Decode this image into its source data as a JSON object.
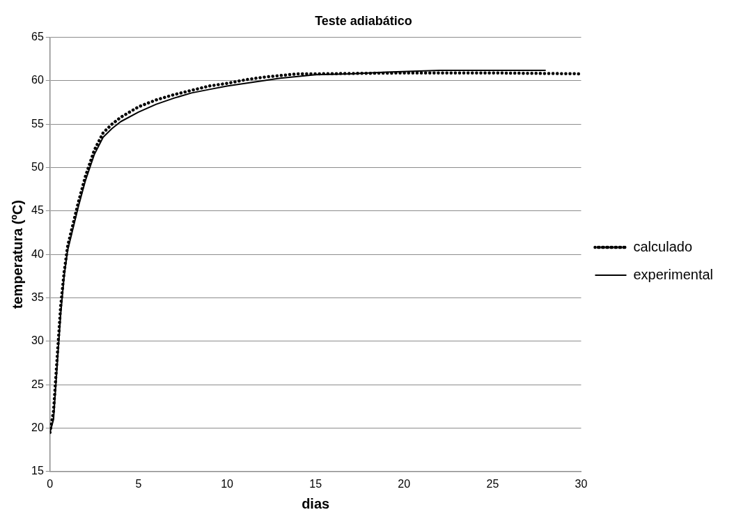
{
  "chart_data": {
    "type": "line",
    "title": "Teste adiabático",
    "xlabel": "dias",
    "ylabel": "temperatura (ºC)",
    "xlim": [
      0,
      30
    ],
    "xticks": [
      0,
      5,
      10,
      15,
      20,
      25,
      30
    ],
    "ylim": [
      15,
      65
    ],
    "yticks": [
      15,
      20,
      25,
      30,
      35,
      40,
      45,
      50,
      55,
      60,
      65
    ],
    "grid": "y",
    "legend": "right",
    "marker": "none",
    "series": [
      {
        "name": "calculado",
        "color": "#000000",
        "line_style": "dotted",
        "x": [
          0,
          0.2,
          0.4,
          0.6,
          0.8,
          1,
          1.3,
          1.6,
          2,
          2.5,
          3,
          3.5,
          4,
          5,
          6,
          7,
          8,
          9,
          10,
          11,
          12,
          13,
          14,
          15,
          20,
          25,
          30
        ],
        "values": [
          19.5,
          22,
          28,
          34,
          38,
          41,
          43.5,
          46,
          49,
          52,
          54,
          55,
          55.8,
          57,
          57.8,
          58.4,
          58.9,
          59.4,
          59.7,
          60.1,
          60.4,
          60.6,
          60.8,
          60.8,
          60.9,
          60.9,
          60.8
        ]
      },
      {
        "name": "experimental",
        "color": "#000000",
        "line_style": "solid",
        "x": [
          0,
          0.2,
          0.4,
          0.6,
          0.8,
          1,
          1.3,
          1.6,
          2,
          2.5,
          3,
          3.5,
          4,
          5,
          6,
          7,
          8,
          9,
          10,
          11,
          12,
          13,
          14,
          15,
          17,
          19,
          22,
          28
        ],
        "values": [
          19.5,
          21,
          27,
          33,
          37.5,
          40.5,
          43,
          45.5,
          48.5,
          51.5,
          53.5,
          54.5,
          55.3,
          56.4,
          57.3,
          58,
          58.6,
          59,
          59.4,
          59.7,
          60,
          60.3,
          60.5,
          60.7,
          60.8,
          61,
          61.2,
          61.2
        ]
      }
    ]
  }
}
